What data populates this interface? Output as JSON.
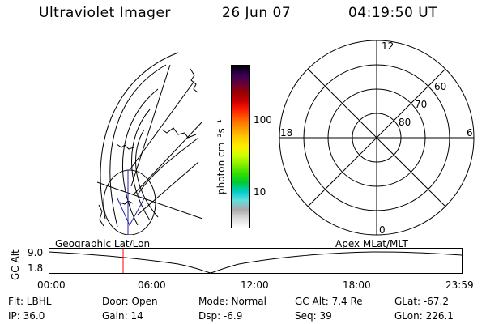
{
  "header": {
    "title": "Ultraviolet Imager",
    "date": "26 Jun 07",
    "time": "04:19:50 UT"
  },
  "colorbar": {
    "label": "photon cm⁻²s⁻¹",
    "ticks": [
      "100",
      "10"
    ],
    "colors": [
      "#000000",
      "#330055",
      "#66003a",
      "#990000",
      "#cc0000",
      "#ff2200",
      "#ff6600",
      "#ff9900",
      "#ffcc00",
      "#ffee00",
      "#ccff00",
      "#88ee00",
      "#33dd00",
      "#00cc33",
      "#00cccc",
      "#66dddd",
      "#aaaaaa",
      "#dddddd",
      "#ffffff"
    ]
  },
  "polar": {
    "labels": {
      "top": "12",
      "bottom": "0",
      "left": "18",
      "right": "6"
    },
    "lat_labels": [
      "60",
      "70",
      "80"
    ]
  },
  "timeline": {
    "left_title": "Geographic Lat/Lon",
    "right_title": "Apex MLat/MLT",
    "y_axis_label": "GC Alt",
    "y_ticks": [
      "9.0",
      "1.8"
    ],
    "x_ticks": [
      "00:00",
      "06:00",
      "12:00",
      "18:00",
      "23:59"
    ],
    "marker_color": "#ff0000",
    "marker_time_fraction": 0.18
  },
  "info": {
    "flt": "Flt: LBHL",
    "ip": "IP: 36.0",
    "door": "Door: Open",
    "gain": "Gain: 14",
    "mode": "Mode: Normal",
    "dsp": "Dsp:    -6.9",
    "gcalt": "GC Alt: 7.4 Re",
    "seq": "Seq: 39",
    "glat": "GLat: -67.2",
    "glon": "GLon: 226.1"
  }
}
